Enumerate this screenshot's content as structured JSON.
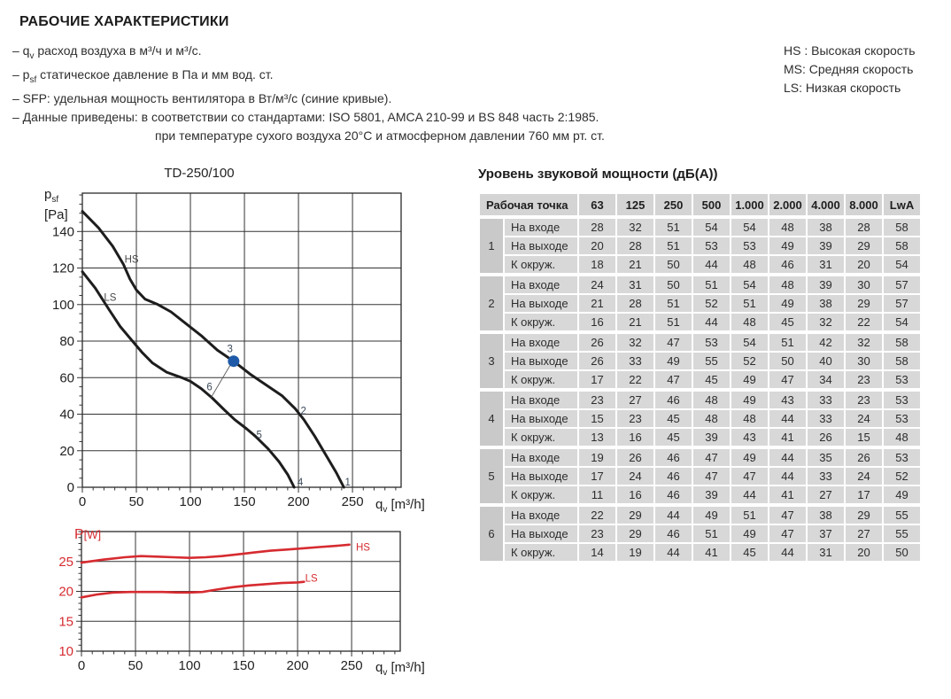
{
  "page_title": "РАБОЧИЕ ХАРАКТЕРИСТИКИ",
  "bullets": [
    {
      "segments": [
        {
          "t": "– q"
        },
        {
          "t": "v",
          "sub": true
        },
        {
          "t": " расход воздуха в м³/ч и м³/с."
        }
      ]
    },
    {
      "segments": [
        {
          "t": "– p"
        },
        {
          "t": "sf",
          "sub": true
        },
        {
          "t": " статическое давление в Па и мм вод. ст."
        }
      ]
    },
    {
      "segments": [
        {
          "t": "– SFP: удельная мощность вентилятора в Вт/м³/с (синие кривые)."
        }
      ]
    },
    {
      "segments": [
        {
          "t": "– Данные приведены: в соответствии со стандартами: ISO 5801, AMCA 210-99 и BS 848 часть 2:1985."
        }
      ]
    },
    {
      "segments": [
        {
          "t": "при температуре сухого воздуха 20°С и атмосферном давлении 760 мм рт. ст."
        }
      ],
      "indent": true
    }
  ],
  "legend": {
    "items": [
      "HS : Высокая скорость",
      "MS: Средняя скорость",
      "LS: Низкая скорость"
    ]
  },
  "colors": {
    "red": "#d62b30",
    "blue": "#1e5aa8",
    "curve_black": "#1d1d1d"
  },
  "axis_labels": {
    "pressure_y_main": "p",
    "pressure_y_sub": "sf",
    "pressure_y_unit": "[Pa]",
    "x_main": "q",
    "x_sub": "v",
    "x_unit": "[m³/h]",
    "power_y_main": "P",
    "power_y_unit": "[W]"
  },
  "chart_data": [
    {
      "type": "line",
      "title": "TD-250/100",
      "xlabel": "qv [m³/h]",
      "ylabel": "psf [Pa]",
      "xlim": [
        0,
        295
      ],
      "ylim": [
        0,
        161
      ],
      "xticks": [
        0,
        50,
        100,
        150,
        200,
        250
      ],
      "yticks": [
        0,
        20,
        40,
        60,
        80,
        100,
        120,
        140
      ],
      "xminor": 10,
      "yminor": 5,
      "grid": true,
      "legend_position": "on-curve",
      "series": [
        {
          "name": "HS",
          "color": "#1d1d1d",
          "width": 3,
          "points": [
            [
              0,
              151
            ],
            [
              15,
              142
            ],
            [
              28,
              132
            ],
            [
              38,
              122
            ],
            [
              44,
              114
            ],
            [
              50,
              108
            ],
            [
              58,
              103
            ],
            [
              70,
              100
            ],
            [
              82,
              96
            ],
            [
              95,
              90
            ],
            [
              110,
              83
            ],
            [
              125,
              75
            ],
            [
              140,
              69
            ],
            [
              155,
              62
            ],
            [
              170,
              56
            ],
            [
              185,
              50
            ],
            [
              197,
              43
            ],
            [
              205,
              37
            ],
            [
              215,
              28
            ],
            [
              225,
              18
            ],
            [
              235,
              8
            ],
            [
              242,
              0
            ]
          ]
        },
        {
          "name": "LS",
          "color": "#1d1d1d",
          "width": 3,
          "points": [
            [
              0,
              118
            ],
            [
              12,
              109
            ],
            [
              25,
              97
            ],
            [
              35,
              88
            ],
            [
              45,
              81
            ],
            [
              55,
              74
            ],
            [
              65,
              68
            ],
            [
              78,
              63
            ],
            [
              92,
              60
            ],
            [
              100,
              58
            ],
            [
              110,
              54
            ],
            [
              120,
              49
            ],
            [
              132,
              42
            ],
            [
              141,
              37
            ],
            [
              152,
              32
            ],
            [
              160,
              28
            ],
            [
              172,
              21
            ],
            [
              182,
              14
            ],
            [
              190,
              7
            ],
            [
              196,
              0
            ]
          ]
        }
      ],
      "annotations": [
        {
          "text": "HS",
          "x": 39,
          "y": 123,
          "color": "#4a4a4a"
        },
        {
          "text": "LS",
          "x": 20,
          "y": 102,
          "color": "#4a4a4a"
        },
        {
          "text": "3",
          "x": 134,
          "y": 74,
          "color": "#3c4a5a"
        },
        {
          "text": "6",
          "x": 115,
          "y": 53,
          "color": "#3c4a5a"
        },
        {
          "text": "2",
          "x": 202,
          "y": 40,
          "color": "#3c4a5a"
        },
        {
          "text": "5",
          "x": 161,
          "y": 27,
          "color": "#3c4a5a"
        },
        {
          "text": "4",
          "x": 199,
          "y": 1,
          "color": "#3c4a5a"
        },
        {
          "text": "1",
          "x": 243,
          "y": 1,
          "color": "#3c4a5a"
        }
      ],
      "markers": [
        {
          "x": 140,
          "y": 69,
          "r": 6.5,
          "color": "#1e5aa8",
          "line": [
            139,
            69,
            119,
            49
          ]
        }
      ]
    },
    {
      "type": "line",
      "title": "",
      "xlabel": "qv [m³/h]",
      "ylabel": "P[W]",
      "xlim": [
        0,
        295
      ],
      "ylim": [
        10,
        30
      ],
      "xticks": [
        0,
        50,
        100,
        150,
        200,
        250
      ],
      "yticks": [
        10,
        15,
        20,
        25
      ],
      "xminor": 10,
      "yminor": 1,
      "grid": true,
      "legend_position": "on-curve",
      "ytick_class": "red",
      "series": [
        {
          "name": "HS",
          "color": "#d62b30",
          "width": 2.6,
          "points": [
            [
              0,
              24.8
            ],
            [
              20,
              25.3
            ],
            [
              40,
              25.7
            ],
            [
              55,
              25.9
            ],
            [
              70,
              25.8
            ],
            [
              85,
              25.7
            ],
            [
              100,
              25.6
            ],
            [
              115,
              25.7
            ],
            [
              130,
              25.9
            ],
            [
              145,
              26.2
            ],
            [
              160,
              26.5
            ],
            [
              175,
              26.8
            ],
            [
              190,
              27.0
            ],
            [
              205,
              27.2
            ],
            [
              220,
              27.4
            ],
            [
              235,
              27.6
            ],
            [
              248,
              27.8
            ]
          ]
        },
        {
          "name": "LS",
          "color": "#d62b30",
          "width": 2.6,
          "points": [
            [
              0,
              19.0
            ],
            [
              15,
              19.5
            ],
            [
              30,
              19.8
            ],
            [
              45,
              19.9
            ],
            [
              60,
              19.9
            ],
            [
              75,
              19.9
            ],
            [
              90,
              19.8
            ],
            [
              100,
              19.8
            ],
            [
              112,
              19.9
            ],
            [
              125,
              20.3
            ],
            [
              140,
              20.7
            ],
            [
              155,
              21.0
            ],
            [
              170,
              21.2
            ],
            [
              185,
              21.4
            ],
            [
              200,
              21.5
            ],
            [
              206,
              21.6
            ]
          ]
        }
      ],
      "annotations": [
        {
          "text": "HS",
          "x": 254,
          "y": 26.8,
          "color": "#d62b30"
        },
        {
          "text": "LS",
          "x": 207,
          "y": 21.6,
          "color": "#d62b30"
        }
      ],
      "markers": []
    }
  ],
  "table": {
    "title": "Уровень звуковой мощности (дБ(А))",
    "corner_label": "Рабочая точка",
    "columns": [
      "63",
      "125",
      "250",
      "500",
      "1.000",
      "2.000",
      "4.000",
      "8.000",
      "LwA"
    ],
    "groups": [
      {
        "id": "1",
        "rows": [
          {
            "label": "На входе",
            "values": [
              28,
              32,
              51,
              54,
              54,
              48,
              38,
              28,
              58
            ]
          },
          {
            "label": "На выходе",
            "values": [
              20,
              28,
              51,
              53,
              53,
              49,
              39,
              29,
              58
            ]
          },
          {
            "label": "К окруж.",
            "values": [
              18,
              21,
              50,
              44,
              48,
              46,
              31,
              20,
              54
            ]
          }
        ]
      },
      {
        "id": "2",
        "rows": [
          {
            "label": "На входе",
            "values": [
              24,
              31,
              50,
              51,
              54,
              48,
              39,
              30,
              57
            ]
          },
          {
            "label": "На выходе",
            "values": [
              21,
              28,
              51,
              52,
              51,
              49,
              38,
              29,
              57
            ]
          },
          {
            "label": "К окруж.",
            "values": [
              16,
              21,
              51,
              44,
              48,
              45,
              32,
              22,
              54
            ]
          }
        ]
      },
      {
        "id": "3",
        "rows": [
          {
            "label": "На входе",
            "values": [
              26,
              32,
              47,
              53,
              54,
              51,
              42,
              32,
              58
            ]
          },
          {
            "label": "На выходе",
            "values": [
              26,
              33,
              49,
              55,
              52,
              50,
              40,
              30,
              58
            ]
          },
          {
            "label": "К окруж.",
            "values": [
              17,
              22,
              47,
              45,
              49,
              47,
              34,
              23,
              53
            ]
          }
        ]
      },
      {
        "id": "4",
        "rows": [
          {
            "label": "На входе",
            "values": [
              23,
              27,
              46,
              48,
              49,
              43,
              33,
              23,
              53
            ]
          },
          {
            "label": "На выходе",
            "values": [
              15,
              23,
              45,
              48,
              48,
              44,
              33,
              24,
              53
            ]
          },
          {
            "label": "К окруж.",
            "values": [
              13,
              16,
              45,
              39,
              43,
              41,
              26,
              15,
              48
            ]
          }
        ]
      },
      {
        "id": "5",
        "rows": [
          {
            "label": "На входе",
            "values": [
              19,
              26,
              46,
              47,
              49,
              44,
              35,
              26,
              53
            ]
          },
          {
            "label": "На выходе",
            "values": [
              17,
              24,
              46,
              47,
              47,
              44,
              33,
              24,
              52
            ]
          },
          {
            "label": "К окруж.",
            "values": [
              11,
              16,
              46,
              39,
              44,
              41,
              27,
              17,
              49
            ]
          }
        ]
      },
      {
        "id": "6",
        "rows": [
          {
            "label": "На входе",
            "values": [
              22,
              29,
              44,
              49,
              51,
              47,
              38,
              29,
              55
            ]
          },
          {
            "label": "На выходе",
            "values": [
              23,
              29,
              46,
              51,
              49,
              47,
              37,
              27,
              55
            ]
          },
          {
            "label": "К окруж.",
            "values": [
              14,
              19,
              44,
              41,
              45,
              44,
              31,
              20,
              50
            ]
          }
        ]
      }
    ]
  }
}
